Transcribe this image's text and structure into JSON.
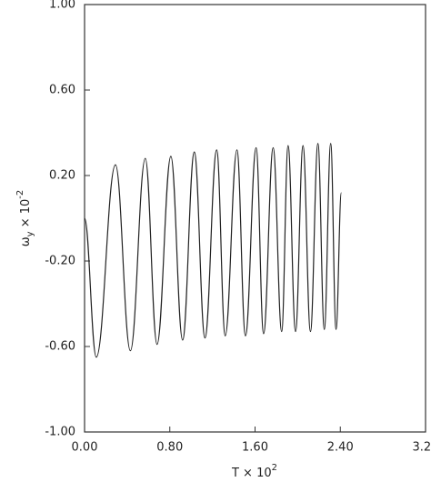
{
  "chart_data": {
    "type": "line",
    "xlabel": [
      "T × 10",
      "2"
    ],
    "ylabel": [
      "ω",
      "y",
      " × 10",
      "-2"
    ],
    "xlim": [
      0,
      3.2
    ],
    "ylim": [
      -1,
      1
    ],
    "xticks": [
      {
        "value": 0,
        "label": "0.00"
      },
      {
        "value": 0.8,
        "label": "0.80"
      },
      {
        "value": 1.6,
        "label": "1.60"
      },
      {
        "value": 2.4,
        "label": "2.40"
      },
      {
        "value": 3.2,
        "label": "3.20"
      }
    ],
    "yticks": [
      {
        "value": -1,
        "label": "-1.00"
      },
      {
        "value": -0.6,
        "label": "-0.60"
      },
      {
        "value": -0.2,
        "label": "-0.20"
      },
      {
        "value": 0.2,
        "label": "0.20"
      },
      {
        "value": 0.6,
        "label": "0.60"
      },
      {
        "value": 1,
        "label": "1.00"
      }
    ],
    "series": [
      {
        "color": "#222222",
        "x": [
          0.0,
          0.11,
          0.29,
          0.43,
          0.57,
          0.68,
          0.81,
          0.92,
          1.03,
          1.13,
          1.24,
          1.32,
          1.43,
          1.51,
          1.61,
          1.68,
          1.77,
          1.85,
          1.91,
          1.98,
          2.05,
          2.12,
          2.19,
          2.25,
          2.31,
          2.36,
          2.41
        ],
        "values": [
          0.0,
          -0.65,
          0.25,
          -0.62,
          0.28,
          -0.59,
          0.29,
          -0.57,
          0.31,
          -0.56,
          0.32,
          -0.55,
          0.32,
          -0.55,
          0.33,
          -0.54,
          0.33,
          -0.53,
          0.34,
          -0.53,
          0.34,
          -0.53,
          0.35,
          -0.52,
          0.35,
          -0.52,
          0.12
        ]
      }
    ]
  }
}
